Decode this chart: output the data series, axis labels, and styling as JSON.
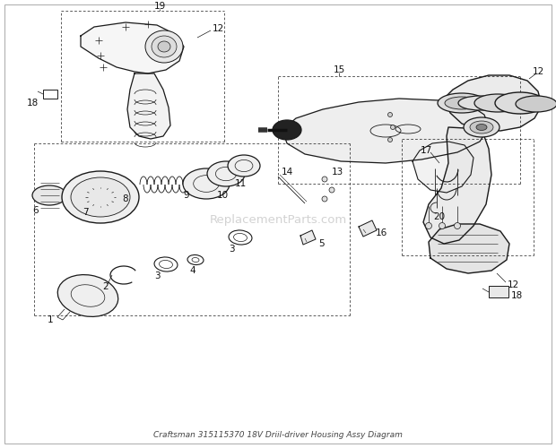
{
  "title": "Craftsman 315115370 18V Driil-driver Housing Assy Diagram",
  "bg_color": "#ffffff",
  "line_color": "#1a1a1a",
  "watermark": "ReplacementParts.com",
  "watermark_color": "#cccccc",
  "figsize": [
    6.2,
    5.0
  ],
  "dpi": 100,
  "border_color": "#999999",
  "label_fontsize": 7.5
}
